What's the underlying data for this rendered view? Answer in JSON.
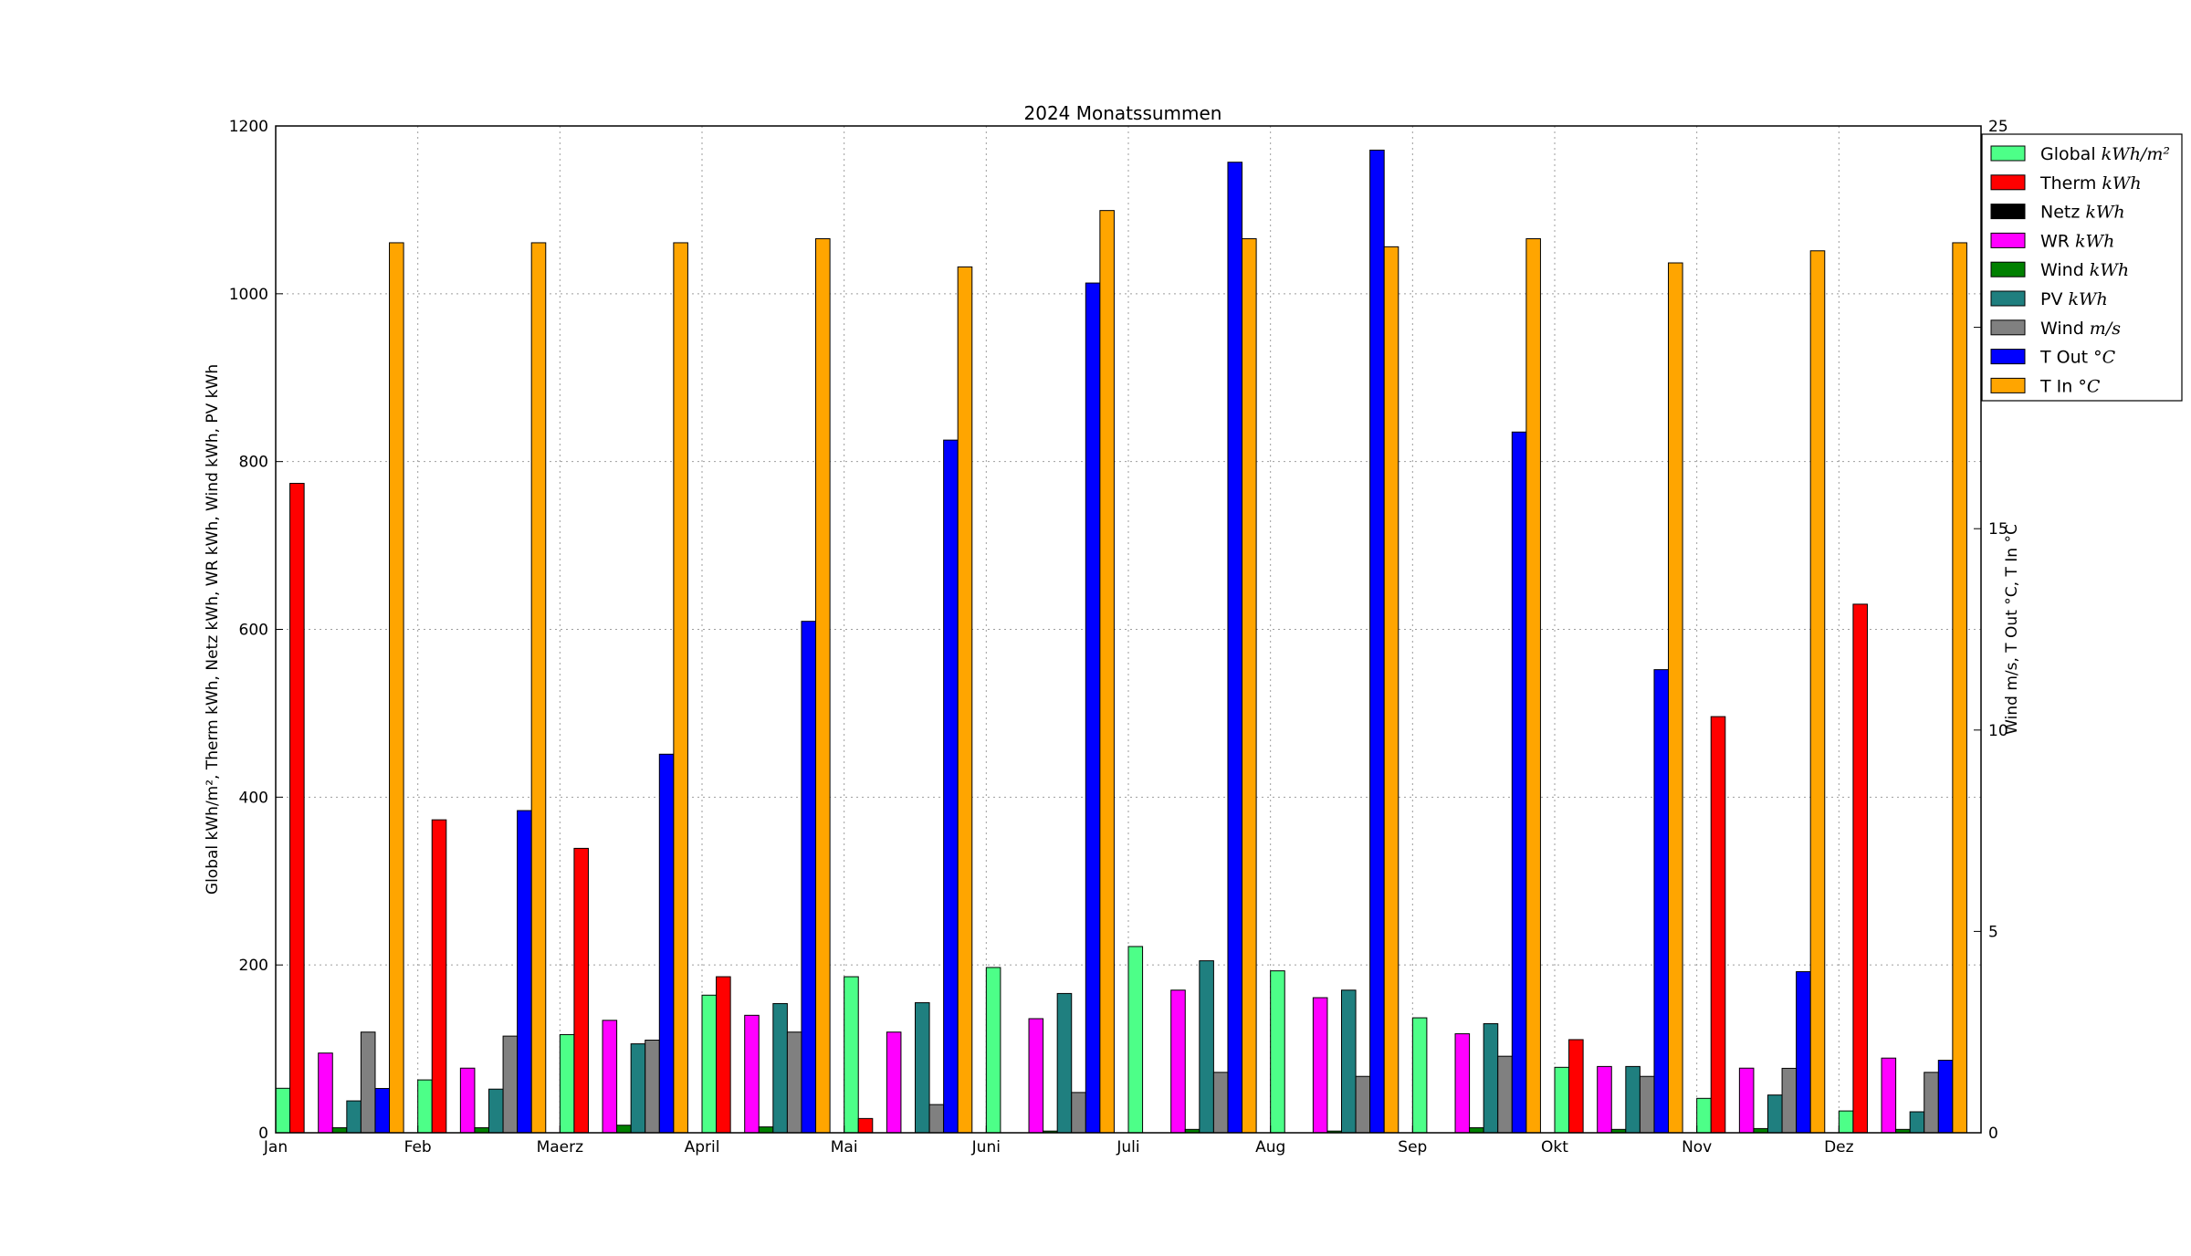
{
  "chart_data": {
    "type": "bar",
    "title": "2024 Monatssummen",
    "ylabel_left": "Global kWh/m², Therm kWh, Netz kWh, WR kWh, Wind kWh, PV kWh",
    "ylabel_right": "Wind m/s, T Out °C, T In °C",
    "categories": [
      "Jan",
      "Feb",
      "Maerz",
      "April",
      "Mai",
      "Juni",
      "Juli",
      "Aug",
      "Sep",
      "Okt",
      "Nov",
      "Dez"
    ],
    "ylim_left": [
      0,
      1200
    ],
    "ylim_right": [
      0,
      25
    ],
    "yticks_left": [
      "0",
      "200",
      "400",
      "600",
      "800",
      "1000",
      "1200"
    ],
    "yticks_right": [
      "0",
      "5",
      "10",
      "15",
      "20",
      "25"
    ],
    "grid": true,
    "legend_position": "top-right, outside plot",
    "series": [
      {
        "name": "Global kWh/m²",
        "axis": "left",
        "color": "#4dff88",
        "values": [
          53,
          63,
          117,
          164,
          186,
          197,
          222,
          193,
          137,
          78,
          41,
          26
        ]
      },
      {
        "name": "Therm kWh",
        "axis": "left",
        "color": "#ff0000",
        "values": [
          774,
          373,
          339,
          186,
          17,
          0,
          0,
          0,
          0,
          111,
          496,
          630
        ]
      },
      {
        "name": "Netz kWh",
        "axis": "left",
        "color": "#000000",
        "values": [
          0,
          0,
          0,
          0,
          0,
          0,
          0,
          0,
          0,
          0,
          0,
          0
        ]
      },
      {
        "name": "WR kWh",
        "axis": "left",
        "color": "#ff00ff",
        "values": [
          95,
          77,
          134,
          140,
          120,
          136,
          170,
          161,
          118,
          79,
          77,
          89
        ]
      },
      {
        "name": "Wind kWh",
        "axis": "left",
        "color": "#008000",
        "values": [
          6,
          6,
          9,
          7,
          0,
          2,
          4,
          2,
          6,
          4,
          5,
          4
        ]
      },
      {
        "name": "PV kWh",
        "axis": "left",
        "color": "#1f7f7f",
        "values": [
          38,
          52,
          106,
          154,
          155,
          166,
          205,
          170,
          130,
          79,
          45,
          25
        ]
      },
      {
        "name": "Wind m/s",
        "axis": "right",
        "color": "#808080",
        "values": [
          2.5,
          2.4,
          2.3,
          2.5,
          0.7,
          1.0,
          1.5,
          1.4,
          1.9,
          1.4,
          1.6,
          1.5
        ]
      },
      {
        "name": "T Out °C",
        "axis": "right",
        "color": "#0000ff",
        "values": [
          1.1,
          8.0,
          9.4,
          12.7,
          17.2,
          21.1,
          24.1,
          24.4,
          17.4,
          11.5,
          4.0,
          1.8
        ]
      },
      {
        "name": "T In °C",
        "axis": "right",
        "color": "#ffa500",
        "values": [
          22.1,
          22.1,
          22.1,
          22.2,
          21.5,
          22.9,
          22.2,
          22.0,
          22.2,
          21.6,
          21.9,
          22.1
        ]
      }
    ],
    "legend": [
      {
        "label": "Global",
        "unit": "kWh/m²",
        "color": "#4dff88"
      },
      {
        "label": "Therm",
        "unit": "kWh",
        "color": "#ff0000"
      },
      {
        "label": "Netz",
        "unit": "kWh",
        "color": "#000000"
      },
      {
        "label": "WR",
        "unit": "kWh",
        "color": "#ff00ff"
      },
      {
        "label": "Wind",
        "unit": "kWh",
        "color": "#008000"
      },
      {
        "label": "PV",
        "unit": "kWh",
        "color": "#1f7f7f"
      },
      {
        "label": "Wind",
        "unit": "m/s",
        "color": "#808080"
      },
      {
        "label": "T Out",
        "unit": "°C",
        "color": "#0000ff"
      },
      {
        "label": "T In",
        "unit": "°C",
        "color": "#ffa500"
      }
    ]
  }
}
